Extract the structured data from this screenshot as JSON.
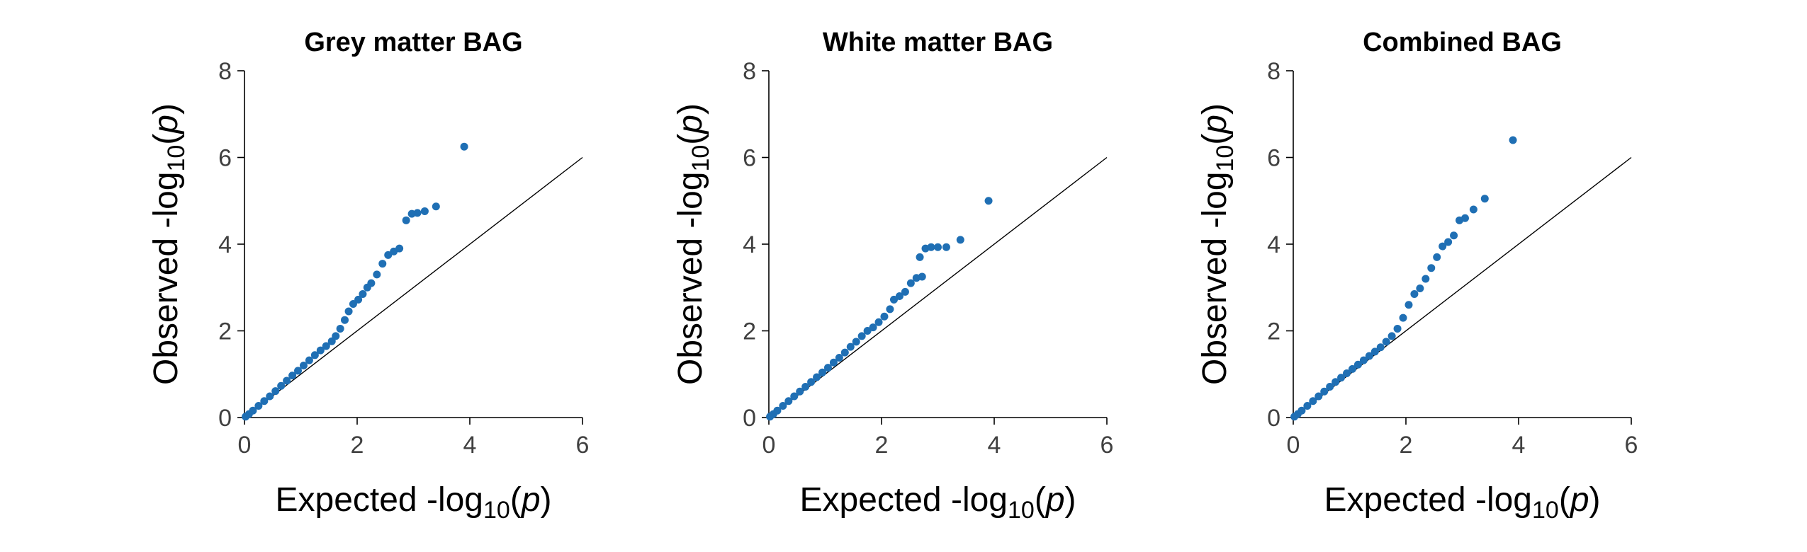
{
  "chart_data": [
    {
      "type": "scatter",
      "title": "Grey matter BAG",
      "xlabel": {
        "prefix": "Expected -log",
        "sub": "10",
        "paren_open": "(",
        "var": "p",
        "paren_close": ")"
      },
      "ylabel": {
        "prefix": "Observed -log",
        "sub": "10",
        "paren_open": "(",
        "var": "p",
        "paren_close": ")"
      },
      "xlim": [
        0,
        6
      ],
      "ylim": [
        0,
        8
      ],
      "xticks": [
        0,
        2,
        4,
        6
      ],
      "yticks": [
        0,
        2,
        4,
        6,
        8
      ],
      "xtick_labels": [
        "0",
        "2",
        "4",
        "6"
      ],
      "ytick_labels": [
        "0",
        "2",
        "4",
        "6",
        "8"
      ],
      "reference_line": {
        "from": [
          0,
          0
        ],
        "to": [
          6,
          6
        ]
      },
      "point_color": "#1f6fb4",
      "points": [
        [
          0.02,
          0.02
        ],
        [
          0.08,
          0.08
        ],
        [
          0.15,
          0.16
        ],
        [
          0.25,
          0.27
        ],
        [
          0.35,
          0.38
        ],
        [
          0.45,
          0.49
        ],
        [
          0.55,
          0.61
        ],
        [
          0.65,
          0.73
        ],
        [
          0.75,
          0.85
        ],
        [
          0.85,
          0.97
        ],
        [
          0.95,
          1.08
        ],
        [
          1.05,
          1.2
        ],
        [
          1.15,
          1.32
        ],
        [
          1.25,
          1.44
        ],
        [
          1.35,
          1.55
        ],
        [
          1.45,
          1.65
        ],
        [
          1.55,
          1.76
        ],
        [
          1.62,
          1.88
        ],
        [
          1.7,
          2.05
        ],
        [
          1.78,
          2.25
        ],
        [
          1.85,
          2.45
        ],
        [
          1.93,
          2.62
        ],
        [
          2.02,
          2.72
        ],
        [
          2.1,
          2.85
        ],
        [
          2.18,
          3.0
        ],
        [
          2.25,
          3.1
        ],
        [
          2.35,
          3.3
        ],
        [
          2.45,
          3.55
        ],
        [
          2.55,
          3.75
        ],
        [
          2.65,
          3.83
        ],
        [
          2.75,
          3.9
        ],
        [
          2.87,
          4.55
        ],
        [
          2.97,
          4.7
        ],
        [
          3.07,
          4.72
        ],
        [
          3.2,
          4.76
        ],
        [
          3.4,
          4.87
        ],
        [
          3.9,
          6.25
        ]
      ]
    },
    {
      "type": "scatter",
      "title": "White matter BAG",
      "xlabel": {
        "prefix": "Expected -log",
        "sub": "10",
        "paren_open": "(",
        "var": "p",
        "paren_close": ")"
      },
      "ylabel": {
        "prefix": "Observed -log",
        "sub": "10",
        "paren_open": "(",
        "var": "p",
        "paren_close": ")"
      },
      "xlim": [
        0,
        6
      ],
      "ylim": [
        0,
        8
      ],
      "xticks": [
        0,
        2,
        4,
        6
      ],
      "yticks": [
        0,
        2,
        4,
        6,
        8
      ],
      "xtick_labels": [
        "0",
        "2",
        "4",
        "6"
      ],
      "ytick_labels": [
        "0",
        "2",
        "4",
        "6",
        "8"
      ],
      "reference_line": {
        "from": [
          0,
          0
        ],
        "to": [
          6,
          6
        ]
      },
      "point_color": "#1f6fb4",
      "points": [
        [
          0.02,
          0.02
        ],
        [
          0.08,
          0.08
        ],
        [
          0.15,
          0.16
        ],
        [
          0.25,
          0.27
        ],
        [
          0.35,
          0.38
        ],
        [
          0.45,
          0.49
        ],
        [
          0.55,
          0.6
        ],
        [
          0.65,
          0.71
        ],
        [
          0.75,
          0.82
        ],
        [
          0.85,
          0.93
        ],
        [
          0.95,
          1.04
        ],
        [
          1.05,
          1.15
        ],
        [
          1.15,
          1.27
        ],
        [
          1.25,
          1.38
        ],
        [
          1.35,
          1.5
        ],
        [
          1.45,
          1.63
        ],
        [
          1.55,
          1.75
        ],
        [
          1.65,
          1.88
        ],
        [
          1.75,
          2.0
        ],
        [
          1.85,
          2.08
        ],
        [
          1.95,
          2.2
        ],
        [
          2.05,
          2.33
        ],
        [
          2.15,
          2.5
        ],
        [
          2.22,
          2.72
        ],
        [
          2.32,
          2.8
        ],
        [
          2.42,
          2.9
        ],
        [
          2.52,
          3.1
        ],
        [
          2.62,
          3.22
        ],
        [
          2.72,
          3.25
        ],
        [
          2.68,
          3.7
        ],
        [
          2.78,
          3.9
        ],
        [
          2.88,
          3.93
        ],
        [
          3.0,
          3.93
        ],
        [
          3.15,
          3.93
        ],
        [
          3.4,
          4.1
        ],
        [
          3.9,
          5.0
        ]
      ]
    },
    {
      "type": "scatter",
      "title": "Combined BAG",
      "xlabel": {
        "prefix": "Expected -log",
        "sub": "10",
        "paren_open": "(",
        "var": "p",
        "paren_close": ")"
      },
      "ylabel": {
        "prefix": "Observed -log",
        "sub": "10",
        "paren_open": "(",
        "var": "p",
        "paren_close": ")"
      },
      "xlim": [
        0,
        6
      ],
      "ylim": [
        0,
        8
      ],
      "xticks": [
        0,
        2,
        4,
        6
      ],
      "yticks": [
        0,
        2,
        4,
        6,
        8
      ],
      "xtick_labels": [
        "0",
        "2",
        "4",
        "6"
      ],
      "ytick_labels": [
        "0",
        "2",
        "4",
        "6",
        "8"
      ],
      "reference_line": {
        "from": [
          0,
          0
        ],
        "to": [
          6,
          6
        ]
      },
      "point_color": "#1f6fb4",
      "points": [
        [
          0.02,
          0.02
        ],
        [
          0.08,
          0.08
        ],
        [
          0.15,
          0.16
        ],
        [
          0.25,
          0.27
        ],
        [
          0.35,
          0.38
        ],
        [
          0.45,
          0.49
        ],
        [
          0.55,
          0.6
        ],
        [
          0.65,
          0.71
        ],
        [
          0.75,
          0.82
        ],
        [
          0.85,
          0.92
        ],
        [
          0.95,
          1.02
        ],
        [
          1.05,
          1.12
        ],
        [
          1.15,
          1.22
        ],
        [
          1.25,
          1.32
        ],
        [
          1.35,
          1.42
        ],
        [
          1.45,
          1.52
        ],
        [
          1.55,
          1.62
        ],
        [
          1.65,
          1.75
        ],
        [
          1.75,
          1.88
        ],
        [
          1.85,
          2.05
        ],
        [
          1.95,
          2.3
        ],
        [
          2.05,
          2.6
        ],
        [
          2.15,
          2.85
        ],
        [
          2.25,
          2.98
        ],
        [
          2.35,
          3.2
        ],
        [
          2.45,
          3.45
        ],
        [
          2.55,
          3.7
        ],
        [
          2.65,
          3.95
        ],
        [
          2.75,
          4.05
        ],
        [
          2.85,
          4.2
        ],
        [
          2.95,
          4.55
        ],
        [
          3.05,
          4.6
        ],
        [
          3.2,
          4.8
        ],
        [
          3.4,
          5.05
        ],
        [
          3.9,
          6.4
        ]
      ]
    }
  ]
}
